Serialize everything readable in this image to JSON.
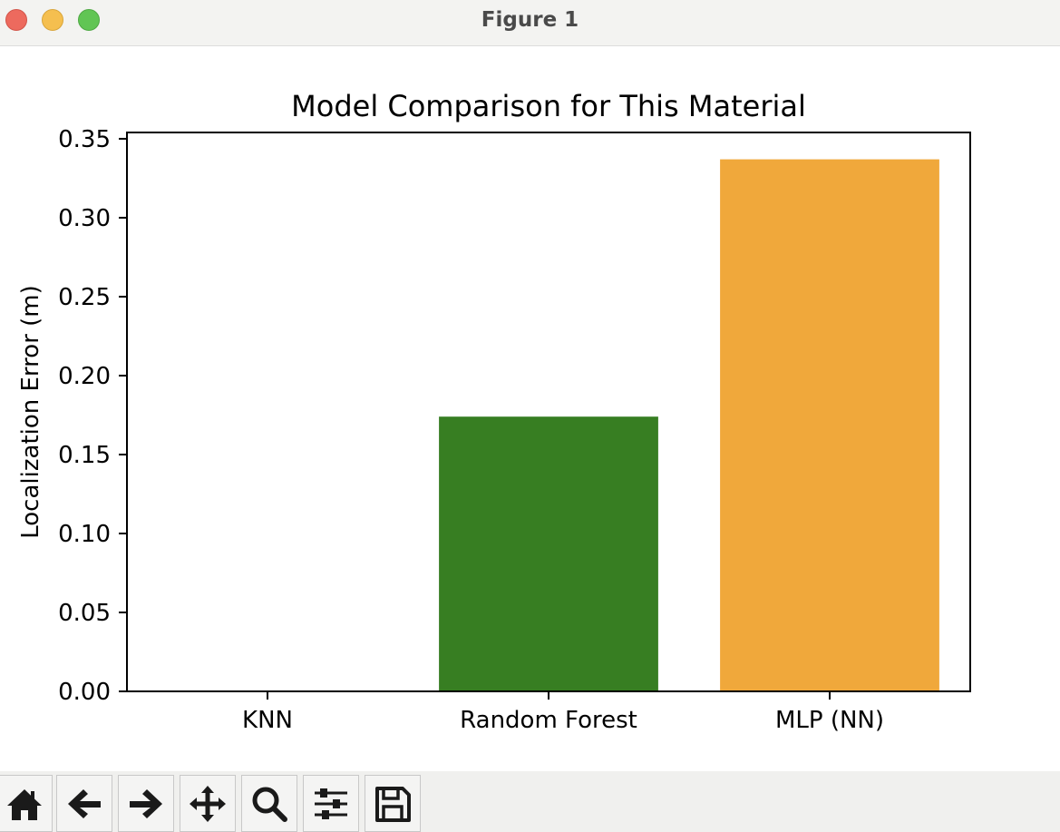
{
  "window": {
    "title": "Figure 1"
  },
  "chart_data": {
    "type": "bar",
    "title": "Model Comparison for This Material",
    "xlabel": "",
    "ylabel": "Localization Error (m)",
    "categories": [
      "KNN",
      "Random Forest",
      "MLP (NN)"
    ],
    "values": [
      0.0,
      0.174,
      0.337
    ],
    "colors": [
      "#1f77b4",
      "#377e22",
      "#f0a83b"
    ],
    "ylim": [
      0,
      0.354
    ],
    "yticks": [
      "0.00",
      "0.05",
      "0.10",
      "0.15",
      "0.20",
      "0.25",
      "0.30",
      "0.35"
    ],
    "grid": false
  },
  "toolbar": {
    "buttons": [
      {
        "name": "home-button",
        "icon": "home-icon"
      },
      {
        "name": "back-button",
        "icon": "arrow-left-icon"
      },
      {
        "name": "forward-button",
        "icon": "arrow-right-icon"
      },
      {
        "name": "pan-button",
        "icon": "move-icon"
      },
      {
        "name": "zoom-button",
        "icon": "magnifier-icon"
      },
      {
        "name": "configure-subplots-button",
        "icon": "sliders-icon"
      },
      {
        "name": "save-button",
        "icon": "floppy-disk-icon"
      }
    ]
  }
}
